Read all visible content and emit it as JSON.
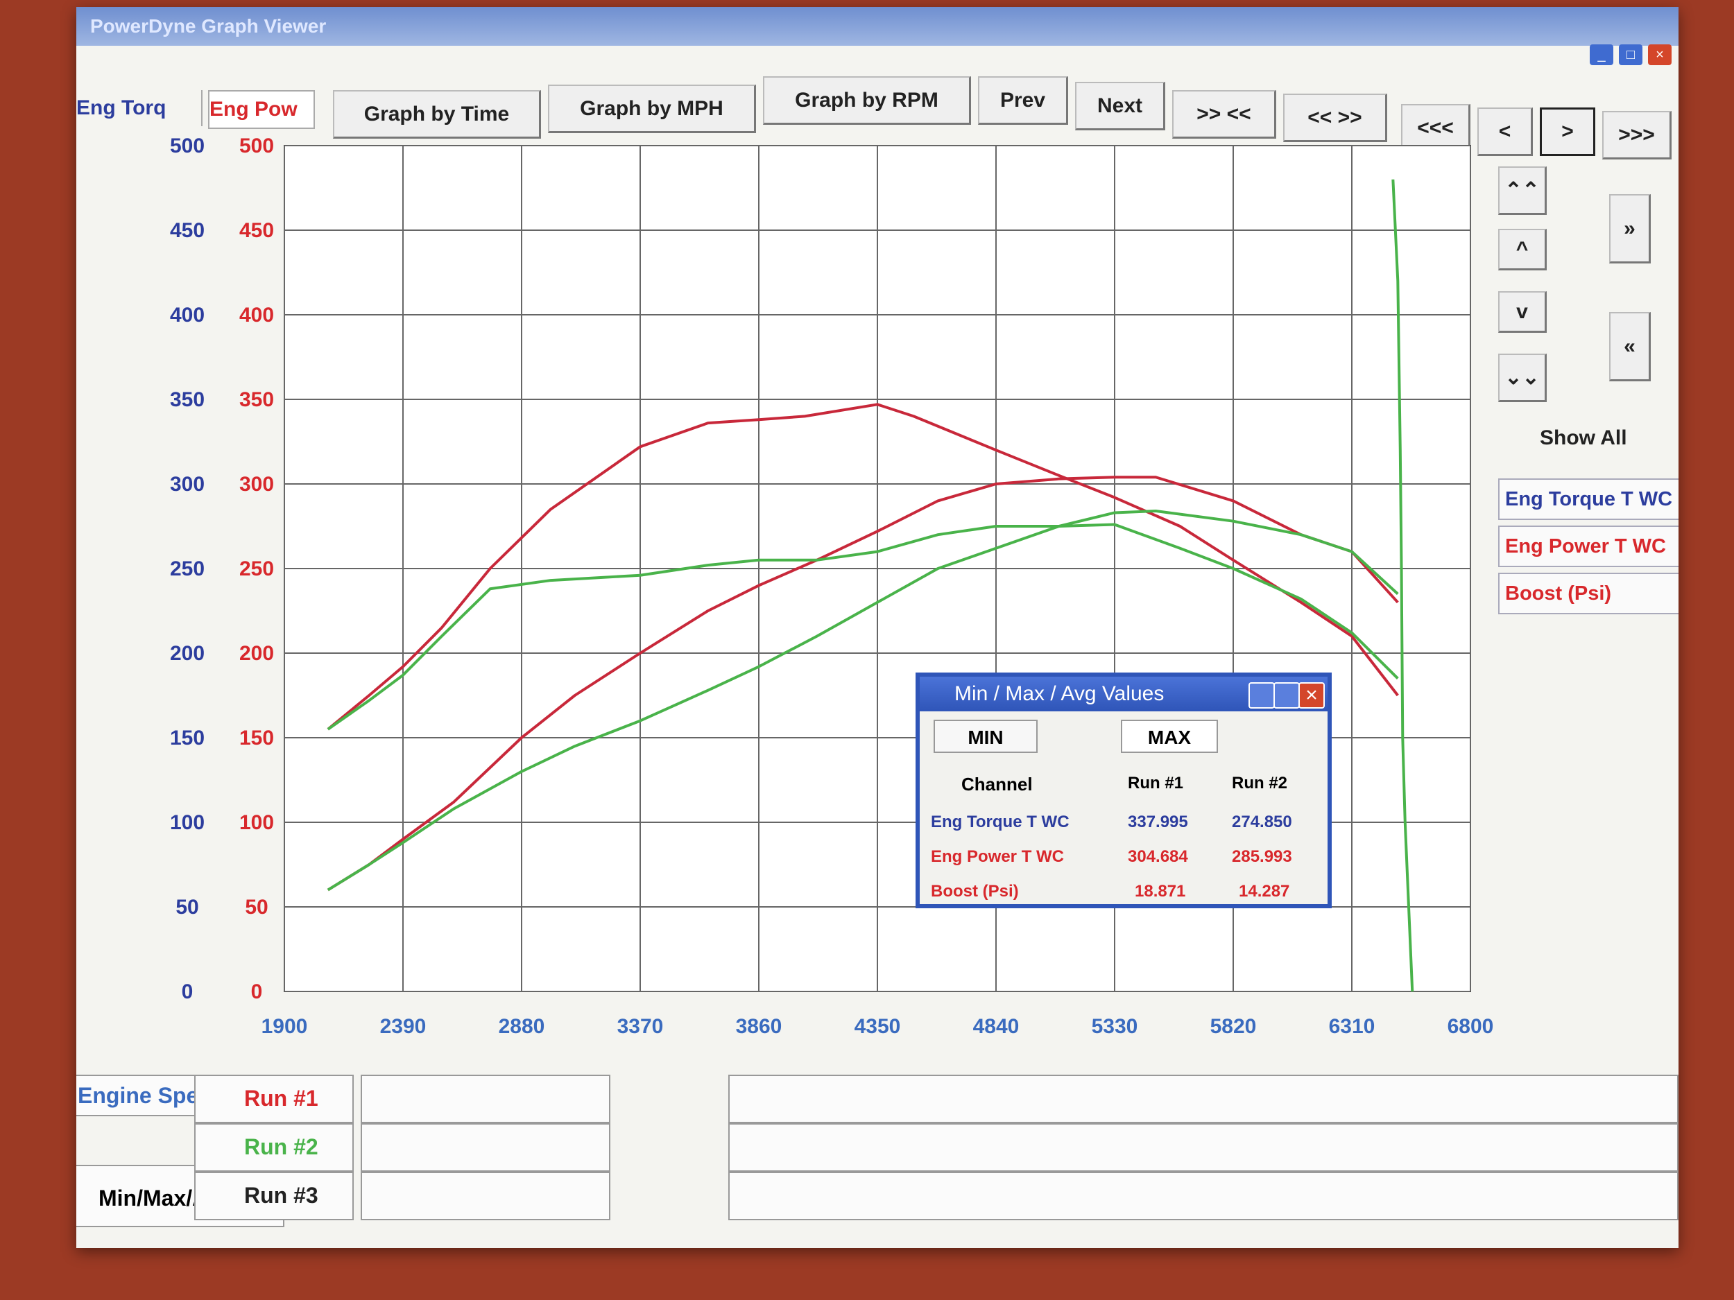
{
  "window": {
    "title": "PowerDyne Graph Viewer",
    "controls": [
      "_",
      "□",
      "×"
    ]
  },
  "axis_tabs": {
    "torque": "Eng Torq",
    "power": "Eng Pow"
  },
  "toolbar": {
    "graph_time": "Graph by Time",
    "graph_mph": "Graph by MPH",
    "graph_rpm": "Graph by RPM",
    "prev": "Prev",
    "next": "Next",
    "zoom_in": ">> <<",
    "zoom_out": "<< >>",
    "first": "<<<",
    "back": "<",
    "forward": ">",
    "last": ">>>"
  },
  "side_nav": {
    "up_fast": "⌃⌃",
    "up": "^",
    "down": "v",
    "down_fast": "⌄⌄",
    "show_all": "Show All"
  },
  "channels": [
    {
      "label": "Eng Torque T WC",
      "color": "#2c3d9e"
    },
    {
      "label": "Eng Power T WC",
      "color": "#d8282c"
    },
    {
      "label": "Boost (Psi)",
      "color": "#d8282c"
    }
  ],
  "bottom": {
    "x_channel": "Engine Speed (RPM)",
    "runs": [
      {
        "label": "Run #1",
        "color": "#d8282c"
      },
      {
        "label": "Run #2",
        "color": "#49b34a"
      },
      {
        "label": "Run #3",
        "color": "#222222"
      }
    ],
    "min_max_button": "Min/Max/Avg"
  },
  "minmax_dialog": {
    "title": "Min / Max / Avg Values",
    "tabs": {
      "min": "MIN",
      "max": "MAX"
    },
    "headers": {
      "channel": "Channel",
      "run1": "Run #1",
      "run2": "Run #2"
    },
    "rows": [
      {
        "channel": "Eng Torque T WC",
        "run1": "337.995",
        "run2": "274.850",
        "color": "#2c3d9e"
      },
      {
        "channel": "Eng Power T WC",
        "run1": "304.684",
        "run2": "285.993",
        "color": "#d8282c"
      },
      {
        "channel": "Boost (Psi)",
        "run1": "18.871",
        "run2": "14.287",
        "color": "#d8282c"
      }
    ]
  },
  "chart_data": {
    "type": "line",
    "xlabel": "",
    "ylabel": "",
    "xlim": [
      1900,
      6800
    ],
    "ylim": [
      0,
      500
    ],
    "x_ticks": [
      1900,
      2390,
      2880,
      3370,
      3860,
      4350,
      4840,
      5330,
      5820,
      6310,
      6800
    ],
    "y_ticks_left": [
      0,
      50,
      100,
      150,
      200,
      250,
      300,
      350,
      400,
      450,
      500
    ],
    "y_ticks_right": [
      0,
      50,
      100,
      150,
      200,
      250,
      300,
      350,
      400,
      450,
      500
    ],
    "grid": true,
    "series": [
      {
        "color": "#c8283a",
        "x": [
          2080,
          2250,
          2390,
          2550,
          2750,
          3000,
          3370,
          3650,
          3860,
          4050,
          4350,
          4500,
          4840,
          5100,
          5330,
          5600,
          5820,
          6100,
          6310,
          6500
        ],
        "y": [
          155,
          175,
          192,
          215,
          250,
          285,
          322,
          336,
          338,
          340,
          347,
          340,
          320,
          305,
          292,
          275,
          255,
          230,
          210,
          175
        ]
      },
      {
        "color": "#c8283a",
        "x": [
          2080,
          2250,
          2390,
          2600,
          2880,
          3100,
          3370,
          3650,
          3860,
          4100,
          4350,
          4600,
          4840,
          5100,
          5330,
          5500,
          5820,
          6100,
          6310,
          6500
        ],
        "y": [
          60,
          75,
          90,
          112,
          150,
          175,
          200,
          225,
          240,
          255,
          272,
          290,
          300,
          303,
          304,
          304,
          290,
          270,
          260,
          230
        ]
      },
      {
        "color": "#49b34a",
        "x": [
          2080,
          2250,
          2390,
          2550,
          2750,
          3000,
          3370,
          3650,
          3860,
          4100,
          4350,
          4600,
          4840,
          5100,
          5330,
          5600,
          5820,
          6100,
          6310,
          6500
        ],
        "y": [
          155,
          172,
          187,
          210,
          238,
          243,
          246,
          252,
          255,
          255,
          260,
          270,
          275,
          275,
          276,
          262,
          250,
          232,
          212,
          185
        ]
      },
      {
        "color": "#49b34a",
        "x": [
          2080,
          2250,
          2390,
          2600,
          2880,
          3100,
          3370,
          3650,
          3860,
          4100,
          4350,
          4600,
          4840,
          5100,
          5330,
          5500,
          5820,
          6100,
          6310,
          6500
        ],
        "y": [
          60,
          75,
          88,
          108,
          130,
          145,
          160,
          178,
          192,
          210,
          230,
          250,
          262,
          275,
          283,
          284,
          278,
          270,
          260,
          235
        ]
      },
      {
        "color": "#49b34a",
        "x": [
          6480,
          6500,
          6510,
          6515,
          6520,
          6530,
          6560
        ],
        "y": [
          480,
          420,
          320,
          250,
          150,
          100,
          0
        ]
      }
    ]
  }
}
